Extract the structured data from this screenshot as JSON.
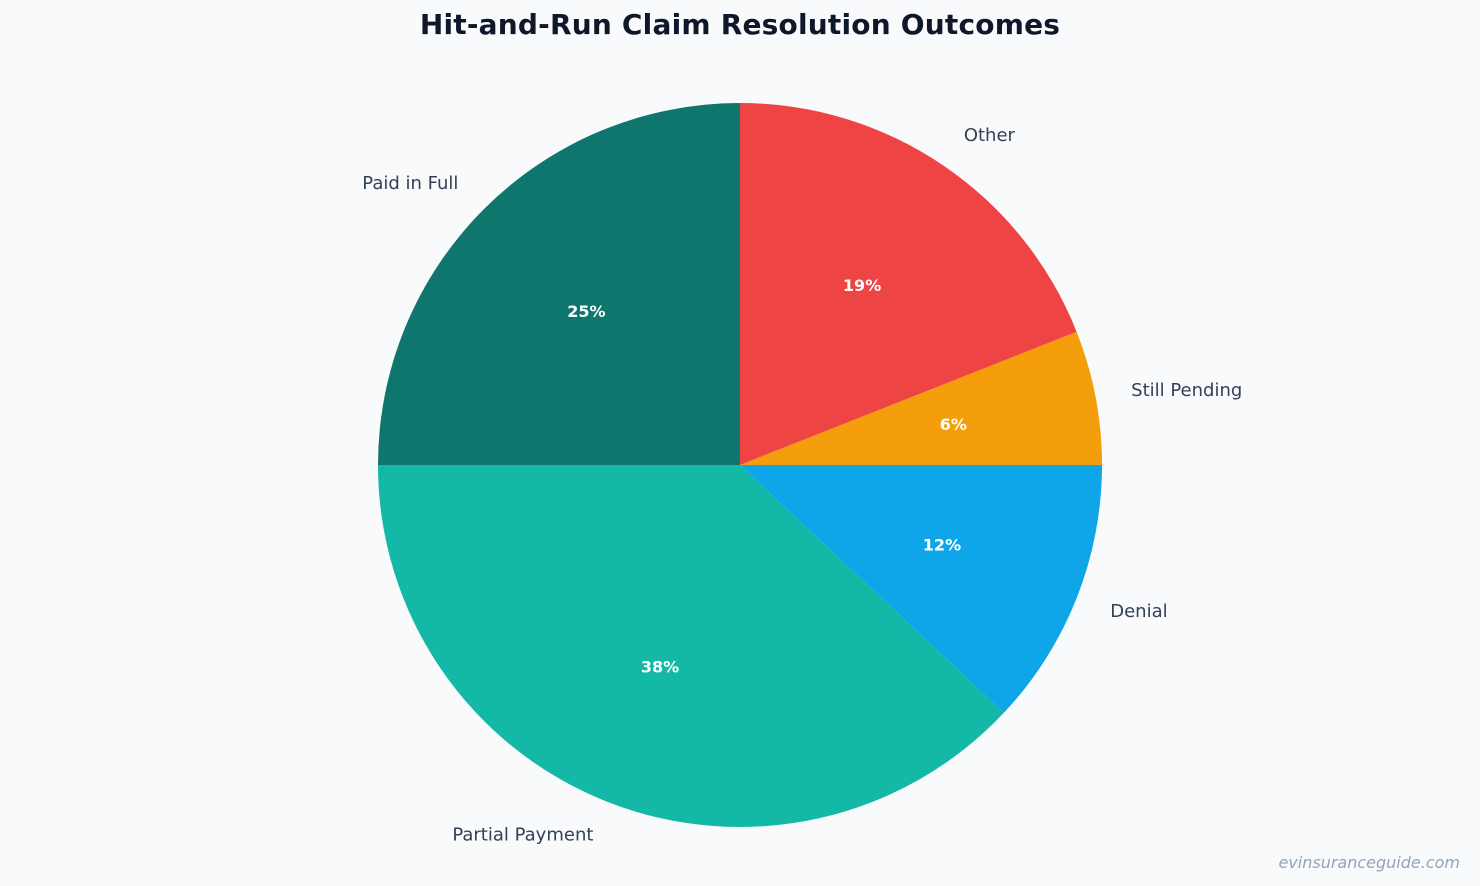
{
  "chart_data": {
    "type": "pie",
    "title": "Hit-and-Run Claim Resolution Outcomes",
    "categories": [
      "Paid in Full",
      "Partial Payment",
      "Denial",
      "Still Pending",
      "Other"
    ],
    "values": [
      25,
      38,
      12,
      6,
      19
    ],
    "value_labels": [
      "25%",
      "38%",
      "12%",
      "6%",
      "19%"
    ],
    "colors": [
      "#0f766e",
      "#14b8a6",
      "#0ea5e9",
      "#f59e0b",
      "#ef4444"
    ],
    "start_angle_deg": 90,
    "direction": "counterclockwise",
    "legend": "none"
  },
  "watermark": "evinsuranceguide.com"
}
